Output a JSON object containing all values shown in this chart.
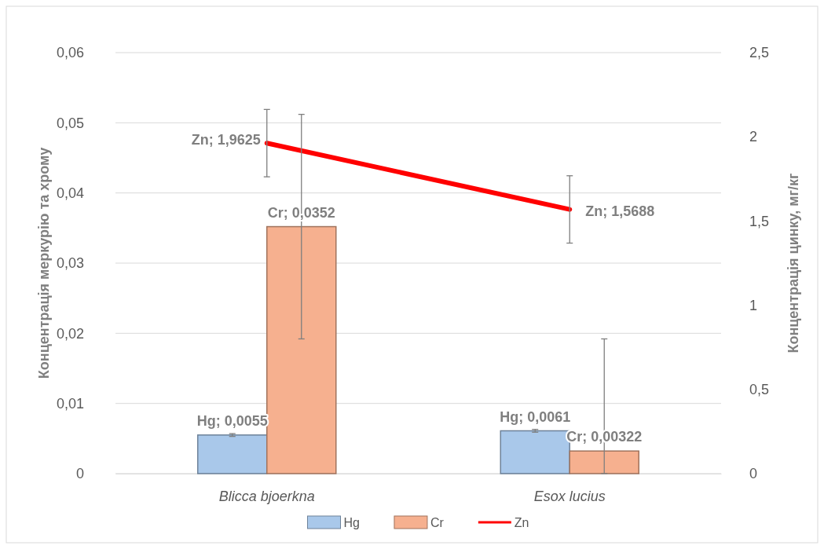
{
  "chart_data": {
    "type": "bar",
    "categories": [
      "Blicca bjoerkna",
      "Esox lucius"
    ],
    "ylabel": "Концентрація меркурію та хрому",
    "y2label": "Концентрація цинку,  мг/кг",
    "ylim": [
      0,
      0.06
    ],
    "yticks": [
      0,
      {
        "value": 0.01,
        "label": "0,01"
      },
      {
        "value": 0.02,
        "label": "0,02"
      },
      {
        "value": 0.03,
        "label": "0,03"
      },
      {
        "value": 0.04,
        "label": "0,04"
      },
      {
        "value": 0.05,
        "label": "0,05"
      },
      {
        "value": 0.06,
        "label": "0,06"
      }
    ],
    "y2lim": [
      0,
      2.5
    ],
    "y2ticks": [
      0,
      {
        "value": 0.5,
        "label": "0,5"
      },
      1,
      {
        "value": 1.5,
        "label": "1,5"
      },
      2,
      {
        "value": 2.5,
        "label": "2,5"
      }
    ],
    "grid": "y",
    "legend": "bottom",
    "series": [
      {
        "name": "Hg",
        "color": "#a9c8ea",
        "values": [
          0.0055,
          0.0061
        ],
        "errors": [
          0.0002,
          0.0002
        ],
        "value_labels": [
          "Hg; 0,0055",
          "Hg; 0,0061"
        ]
      },
      {
        "name": "Cr",
        "color": "#f6b08f",
        "values": [
          0.0352,
          0.00322
        ],
        "errors": [
          0.016,
          [
            0,
            0.0192
          ]
        ],
        "value_labels": [
          "Cr; 0,0352",
          "Cr; 0,00322"
        ]
      },
      {
        "name": "Zn",
        "type": "line",
        "axis": "y2",
        "color": "#ff0000",
        "values": [
          1.9625,
          1.5688
        ],
        "errors": [
          0.2,
          0.2
        ],
        "value_labels": [
          "Zn; 1,9625",
          "Zn; 1,5688"
        ]
      }
    ]
  }
}
